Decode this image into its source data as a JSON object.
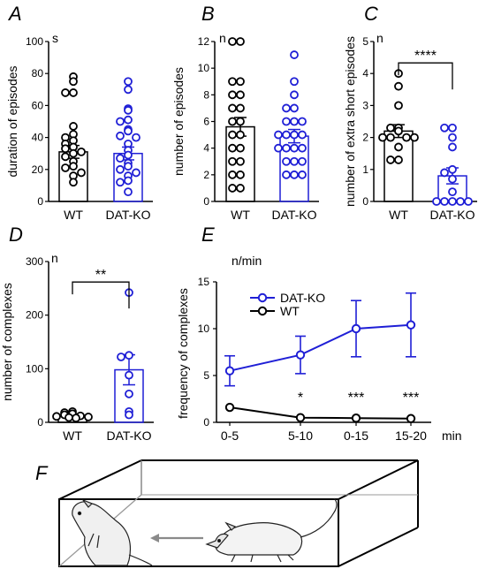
{
  "colors": {
    "wt": "#000000",
    "ko": "#1f1fd6"
  },
  "panels": {
    "A": "A",
    "B": "B",
    "C": "C",
    "D": "D",
    "E": "E",
    "F": "F"
  },
  "chart_data": [
    {
      "panel": "A",
      "type": "bar",
      "unit": "s",
      "ylabel": "duration of episodes",
      "ylim": [
        0,
        100
      ],
      "yticks": [
        0,
        20,
        40,
        60,
        80,
        100
      ],
      "categories": [
        "WT",
        "DAT-KO"
      ],
      "means": [
        31,
        30
      ],
      "sem": [
        4,
        4
      ],
      "points": [
        [
          78,
          75,
          68,
          68,
          47,
          42,
          40,
          38,
          36,
          34,
          33,
          31,
          30,
          28,
          25,
          22,
          21,
          18,
          16,
          12
        ],
        [
          75,
          70,
          58,
          57,
          51,
          50,
          45,
          44,
          41,
          40,
          36,
          32,
          29,
          27,
          24,
          22,
          20,
          18,
          16,
          13,
          12,
          6
        ]
      ]
    },
    {
      "panel": "B",
      "type": "bar",
      "unit": "n",
      "ylabel": "number of episodes",
      "ylim": [
        0,
        12
      ],
      "yticks": [
        0,
        2,
        4,
        6,
        8,
        10,
        12
      ],
      "categories": [
        "WT",
        "DAT-KO"
      ],
      "means": [
        5.6,
        4.9
      ],
      "sem": [
        0.7,
        0.5
      ],
      "points": [
        [
          12,
          12,
          9,
          9,
          8,
          8,
          7,
          7,
          6,
          6,
          5,
          5,
          4,
          4,
          3,
          3,
          2,
          2,
          1,
          1
        ],
        [
          11,
          9,
          8,
          7,
          7,
          6,
          6,
          6,
          5,
          5,
          5,
          5,
          4,
          4,
          4,
          4,
          3,
          3,
          3,
          2,
          2,
          2
        ]
      ]
    },
    {
      "panel": "C",
      "type": "bar",
      "unit": "n",
      "ylabel": "number of extra short episodes",
      "ylim": [
        0,
        5
      ],
      "yticks": [
        0,
        1,
        2,
        3,
        4,
        5
      ],
      "categories": [
        "WT",
        "DAT-KO"
      ],
      "means": [
        2.2,
        0.8
      ],
      "sem": [
        0.2,
        0.25
      ],
      "points": [
        [
          4,
          3.6,
          3,
          2.3,
          2.3,
          2.2,
          2,
          2,
          2,
          2,
          1.7,
          1.3,
          1.3
        ],
        [
          2.3,
          2.3,
          2,
          1.7,
          1,
          0.9,
          0.7,
          0.3,
          0,
          0,
          0,
          0,
          0
        ]
      ],
      "annotations": [
        "****"
      ]
    },
    {
      "panel": "D",
      "type": "bar",
      "unit": "n",
      "ylabel": "number of complexes",
      "ylim": [
        0,
        300
      ],
      "yticks": [
        0,
        100,
        200,
        300
      ],
      "categories": [
        "WT",
        "DAT-KO"
      ],
      "means": [
        13,
        98
      ],
      "sem": [
        2.5,
        28
      ],
      "points": [
        [
          20,
          18,
          16,
          14,
          12,
          11,
          10,
          9,
          8
        ],
        [
          242,
          125,
          122,
          88,
          53,
          20,
          14
        ]
      ],
      "annotations": [
        "**"
      ]
    },
    {
      "panel": "E",
      "type": "line",
      "unit": "n/min",
      "xunit": "min",
      "ylabel": "frequency of complexes",
      "ylim": [
        0,
        15
      ],
      "yticks": [
        0,
        5,
        10,
        15
      ],
      "x": [
        "0-5",
        "5-10",
        "0-15",
        "15-20"
      ],
      "series": [
        {
          "name": "DAT-KO",
          "values": [
            5.5,
            7.2,
            10.0,
            10.4
          ],
          "err": [
            1.6,
            2.0,
            3.0,
            3.4
          ]
        },
        {
          "name": "WT",
          "values": [
            1.6,
            0.5,
            0.45,
            0.4
          ],
          "err": [
            0.1,
            0.1,
            0.1,
            0.1
          ]
        }
      ],
      "annotations": [
        "",
        "*",
        "***",
        "***"
      ]
    }
  ]
}
